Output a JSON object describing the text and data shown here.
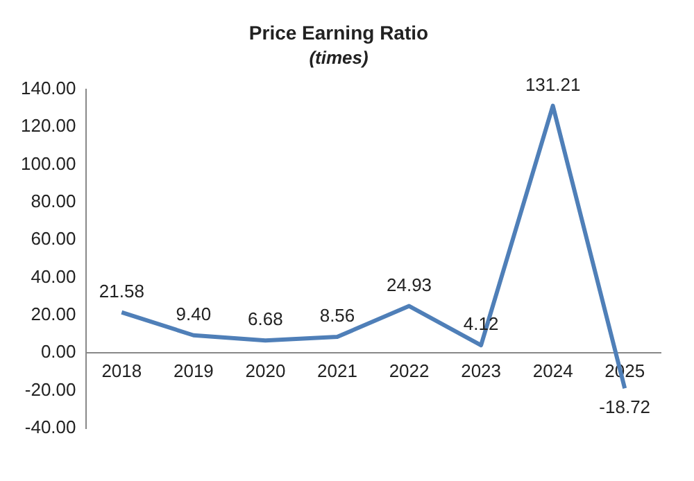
{
  "chart_data": {
    "type": "line",
    "title": "Price Earning Ratio",
    "subtitle": "(times)",
    "categories": [
      "2018",
      "2019",
      "2020",
      "2021",
      "2022",
      "2023",
      "2024",
      "2025"
    ],
    "series": [
      {
        "color": "#4f7fb8",
        "values": [
          21.58,
          9.4,
          6.68,
          8.56,
          24.93,
          4.12,
          131.21,
          -18.72
        ],
        "value_labels": [
          "21.58",
          "9.40",
          "6.68",
          "8.56",
          "24.93",
          "4.12",
          "131.21",
          "-18.72"
        ]
      }
    ],
    "ylim": [
      -40,
      140
    ],
    "yticks": [
      {
        "value": -40,
        "label": "-40.00"
      },
      {
        "value": -20,
        "label": "-20.00"
      },
      {
        "value": 0,
        "label": "0.00"
      },
      {
        "value": 20,
        "label": "20.00"
      },
      {
        "value": 40,
        "label": "40.00"
      },
      {
        "value": 60,
        "label": "60.00"
      },
      {
        "value": 80,
        "label": "80.00"
      },
      {
        "value": 100,
        "label": "100.00"
      },
      {
        "value": 120,
        "label": "120.00"
      },
      {
        "value": 140,
        "label": "140.00"
      }
    ],
    "grid": false,
    "legend": false,
    "marker": "none",
    "line_style": "solid"
  }
}
